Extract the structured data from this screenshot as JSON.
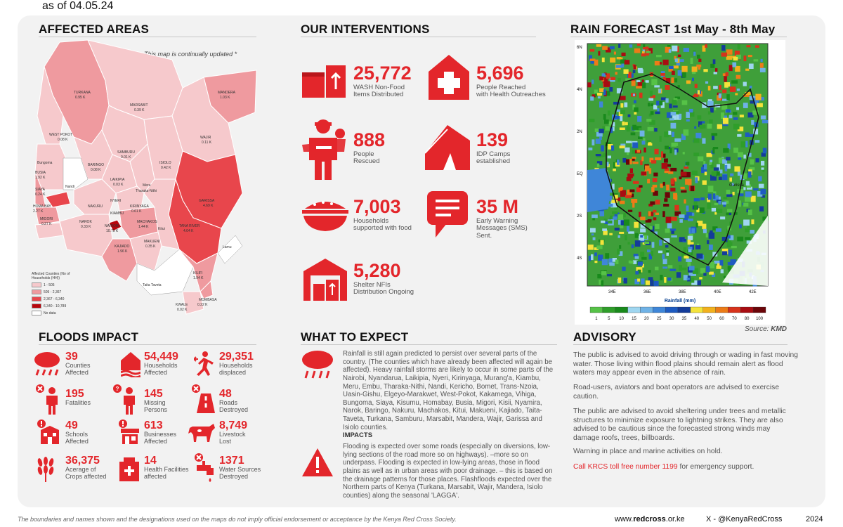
{
  "header": {
    "as_of": "as of 04.05.24"
  },
  "affected_areas": {
    "title": "AFFECTED AREAS",
    "note": "This map is continually updated *",
    "legend_title": "Affected Counties (No of Households (HH))",
    "legend": [
      {
        "label": "1 - 505",
        "color": "#f6c9cc"
      },
      {
        "label": "505 - 2,367",
        "color": "#ef9a9f"
      },
      {
        "label": "2,367 - 6,340",
        "color": "#e8464c"
      },
      {
        "label": "6,340 - 10,789",
        "color": "#b7060d"
      },
      {
        "label": "No data",
        "color": "#ffffff"
      }
    ],
    "counties": [
      {
        "name": "TURKANA",
        "value": "0.95 K"
      },
      {
        "name": "MARSABIT",
        "value": "0.39 K"
      },
      {
        "name": "MANDERA",
        "value": "1.03 K"
      },
      {
        "name": "WEST POKOT",
        "value": "0.08 K"
      },
      {
        "name": "WAJIR",
        "value": "0.11 K"
      },
      {
        "name": "SAMBURU",
        "value": "0.01 K"
      },
      {
        "name": "BARINGO",
        "value": "0.08 K"
      },
      {
        "name": "ISIOLO",
        "value": "0.42 K"
      },
      {
        "name": "BUSIA",
        "value": "1.92 K"
      },
      {
        "name": "LAIKIPIA",
        "value": "0.03 K"
      },
      {
        "name": "GARISSA",
        "value": "4.69 K"
      },
      {
        "name": "TANA RIVER",
        "value": "4.04 K"
      },
      {
        "name": "NAROK",
        "value": "0.33 K"
      },
      {
        "name": "NAIROBI",
        "value": "10.79 K"
      },
      {
        "name": "MACHAKOS",
        "value": "1.44 K"
      },
      {
        "name": "KAJIADO",
        "value": "1.96 K"
      },
      {
        "name": "MAKUENI",
        "value": "0.35 K"
      },
      {
        "name": "KILIFI",
        "value": "1.94 K"
      },
      {
        "name": "KWALE",
        "value": "0.02 K"
      },
      {
        "name": "MOMBASA",
        "value": "0.22 K"
      },
      {
        "name": "SIAYA",
        "value": "0.24 K"
      },
      {
        "name": "HOMA BAY",
        "value": "2.27 K"
      },
      {
        "name": "MIGORI",
        "value": "0.27 K"
      },
      {
        "name": "KIRINYAGA",
        "value": "0.61 K"
      },
      {
        "name": "Bungoma",
        "value": ""
      },
      {
        "name": "Nandi",
        "value": ""
      },
      {
        "name": "Meru",
        "value": ""
      },
      {
        "name": "Tharaka-Nithi",
        "value": ""
      },
      {
        "name": "Kitui",
        "value": ""
      },
      {
        "name": "Lamu",
        "value": ""
      },
      {
        "name": "Taita Taveta",
        "value": ""
      },
      {
        "name": "NYERI",
        "value": ""
      },
      {
        "name": "NAKURU",
        "value": ""
      },
      {
        "name": "KIAMBU",
        "value": ""
      }
    ]
  },
  "interventions": {
    "title": "OUR INTERVENTIONS",
    "items": [
      {
        "value": "25,772",
        "label1": "WASH Non-Food",
        "label2": "Items Distributed"
      },
      {
        "value": "5,696",
        "label1": "People Reached",
        "label2": "with Health Outreaches"
      },
      {
        "value": "888",
        "label1": "People",
        "label2": "Rescued"
      },
      {
        "value": "139",
        "label1": "IDP Camps",
        "label2": "established"
      },
      {
        "value": "7,003",
        "label1": "Households",
        "label2": "supported with food"
      },
      {
        "value": "35 M",
        "label1": "Early Warning",
        "label2": "Messages (SMS)",
        "label3": "Sent."
      },
      {
        "value": "5,280",
        "label1": "Shelter NFIs",
        "label2": "Distribution Ongoing"
      }
    ]
  },
  "rain": {
    "title": "RAIN FORECAST 1st May - 8th May",
    "lat_labels": [
      "6N",
      "4N",
      "2N",
      "EQ",
      "2S",
      "4S"
    ],
    "lon_labels": [
      "34E",
      "36E",
      "38E",
      "40E",
      "42E"
    ],
    "colorbar_title": "Rainfall (mm)",
    "colorbar_ticks": [
      "1",
      "5",
      "10",
      "15",
      "20",
      "25",
      "30",
      "35",
      "40",
      "50",
      "60",
      "70",
      "80",
      "100"
    ],
    "colorbar_colors": [
      "#56c247",
      "#2f9e2a",
      "#198a1c",
      "#9fd6f0",
      "#6fb2e6",
      "#3f86d8",
      "#1e5bc0",
      "#143c9a",
      "#f4e33b",
      "#f2b11d",
      "#ec7c18",
      "#d7331b",
      "#a80d12",
      "#6b0509"
    ],
    "source_prefix": "Source: ",
    "source": "KMD",
    "region_label": "Garissa"
  },
  "floods_impact": {
    "title": "FLOODS IMPACT",
    "items": [
      {
        "value": "39",
        "label1": "Counties",
        "label2": "Affected"
      },
      {
        "value": "54,449",
        "label1": "Households",
        "label2": "Affected"
      },
      {
        "value": "29,351",
        "label1": "Households",
        "label2": "displaced"
      },
      {
        "value": "195",
        "label1": "Fatalities",
        "label2": ""
      },
      {
        "value": "145",
        "label1": "Missing",
        "label2": "Persons"
      },
      {
        "value": "48",
        "label1": "Roads",
        "label2": "Destroyed"
      },
      {
        "value": "49",
        "label1": "Schools",
        "label2": "Affected"
      },
      {
        "value": "613",
        "label1": "Businesses",
        "label2": "Affected"
      },
      {
        "value": "8,749",
        "label1": "Livestock",
        "label2": "Lost"
      },
      {
        "value": "36,375",
        "label1": "Acerage of",
        "label2": "Crops affected"
      },
      {
        "value": "14",
        "label1": "Health Facilities",
        "label2": "affected"
      },
      {
        "value": "1371",
        "label1": "Water Sources",
        "label2": "Destroyed"
      }
    ]
  },
  "what_to_expect": {
    "title": "WHAT TO EXPECT",
    "text": "Rainfall is still again predicted to persist over several parts of the country.  (The counties which have already been affected will again be affected). Heavy rainfall storms are likely to occur in some parts of the Nairobi, Nyandarua, Laikipia, Nyeri, Kirinyaga, Murang'a, Kiambu, Meru, Embu, Tharaka-Nithi, Nandi, Kericho, Bomet, Trans-Nzoia, Uasin-Gishu, Elgeyo-Marakwet, West-Pokot, Kakamega, Vihiga, Bungoma, Siaya, Kisumu, Homabay, Busia, Migori, Kisii, Nyamira, Narok, Baringo, Nakuru, Machakos, Kitui, Makueni, Kajiado, Taita-Taveta, Turkana, Samburu, Marsabit, Mandera, Wajir, Garissa and Isiolo counties.",
    "impacts_title": "IMPACTS",
    "impacts_text": "Flooding is expected over some roads (especially on diversions, low-lying sections of the road more so on highways). –more so on underpass. Flooding is expected in low-lying areas, those in flood plains as well as in urban areas with poor drainage. – this is based on the drainage patterns for those places. Flashfloods expected over the Northern parts of Kenya (Turkana, Marsabit, Wajir, Mandera, Isiolo counties) along the seasonal 'LAGGA'."
  },
  "advisory": {
    "title": "ADVISORY",
    "p1": "The public is advised to avoid driving through or wading in fast moving water. Those living within flood plains should remain alert as flood waters may appear even in the absence of rain.",
    "p2": "Road-users, aviators and boat operators are advised to exercise caution.",
    "p3": "The public are advised to avoid sheltering under trees and metallic structures to minimize exposure to lightning strikes. They are also advised to be cautious since the forecasted strong winds may damage roofs, trees, billboards.",
    "p4": "Warning in place and marine activities on hold.",
    "p5_red": "Call KRCS toll free number 1199",
    "p5_rest": "  for emergency support."
  },
  "footer": {
    "disclaimer": "The boundaries and names shown and the designations used on the maps do not imply official endorsement or acceptance by the Kenya Red Cross Society.",
    "web_prefix": "www.",
    "web_bold": "redcross",
    "web_suffix": ".or.ke",
    "x_handle": "X -  @KenyaRedCross",
    "year": "2024"
  },
  "colors": {
    "accent": "#e3262b",
    "panel": "#f2f2f2"
  }
}
